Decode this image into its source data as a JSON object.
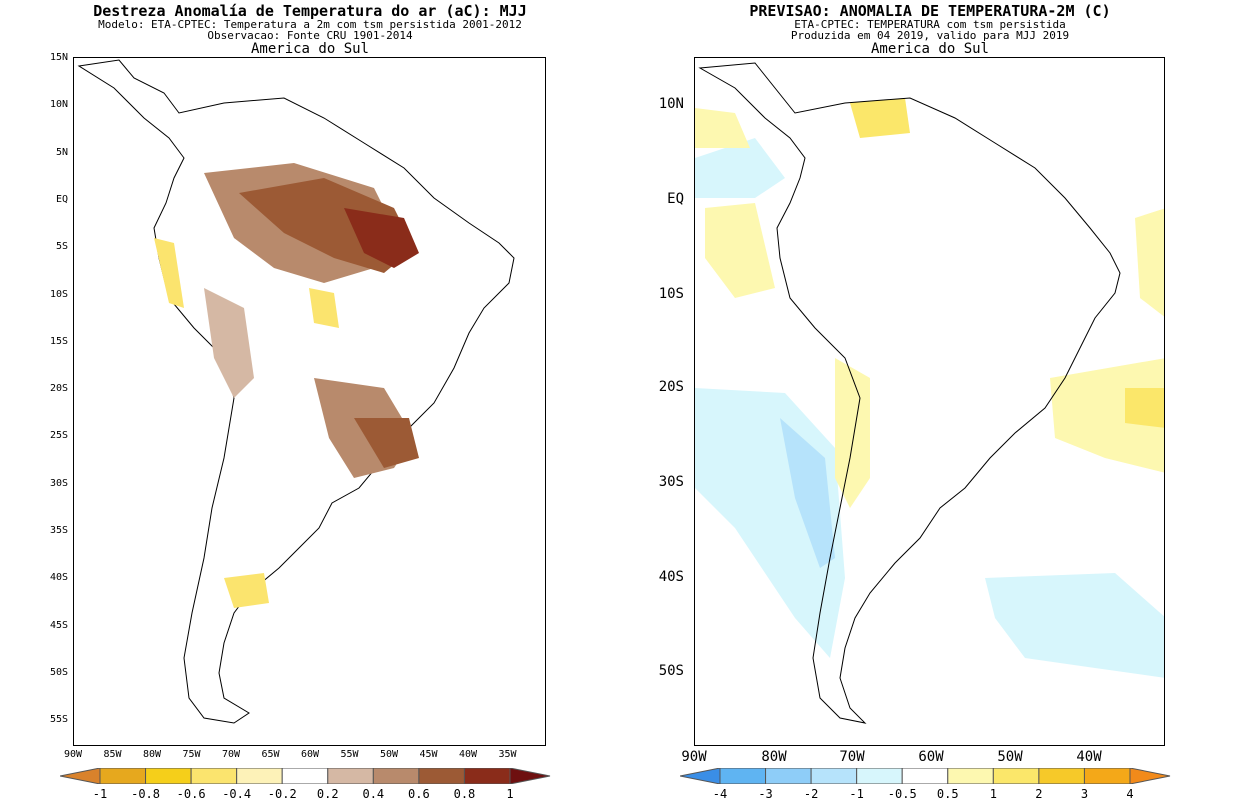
{
  "left": {
    "title": "Destreza Anomalía de Temperatura do ar (aC): MJJ",
    "subtitle1": "Modelo: ETA-CPTEC: Temperatura a 2m com tsm persistida 2001-2012",
    "subtitle2": "Observacao: Fonte CRU 1901-2014",
    "region": "America do Sul",
    "lat_ticks": [
      "15N",
      "10N",
      "5N",
      "EQ",
      "5S",
      "10S",
      "15S",
      "20S",
      "25S",
      "30S",
      "35S",
      "40S",
      "45S",
      "50S",
      "55S"
    ],
    "lon_ticks": [
      "90W",
      "85W",
      "80W",
      "75W",
      "70W",
      "65W",
      "60W",
      "55W",
      "50W",
      "45W",
      "40W",
      "35W"
    ],
    "colorbar": {
      "labels": [
        "-1",
        "-0.8",
        "-0.6",
        "-0.4",
        "-0.2",
        "0.2",
        "0.4",
        "0.6",
        "0.8",
        "1"
      ],
      "colors": [
        "#d9822b",
        "#e6a81e",
        "#f5cf1a",
        "#fbe46e",
        "#fdf2b8",
        "#ffffff",
        "#d5b8a4",
        "#b88a6c",
        "#9c5a35",
        "#8a2c1a",
        "#6e1010"
      ]
    }
  },
  "right": {
    "title": "PREVISAO: ANOMALIA DE TEMPERATURA-2M (C)",
    "subtitle1": "ETA-CPTEC: TEMPERATURA com tsm persistida",
    "subtitle2": "Produzida em 04 2019, valido para MJJ 2019",
    "region": "America do Sul",
    "lat_ticks": [
      "10N",
      "EQ",
      "10S",
      "20S",
      "30S",
      "40S",
      "50S"
    ],
    "lon_ticks": [
      "90W",
      "80W",
      "70W",
      "60W",
      "50W",
      "40W"
    ],
    "colorbar": {
      "labels": [
        "-4",
        "-3",
        "-2",
        "-1",
        "-0.5",
        "0.5",
        "1",
        "2",
        "3",
        "4"
      ],
      "colors": [
        "#3a8ee6",
        "#5fb4f2",
        "#8ecdf8",
        "#b6e3fb",
        "#d7f6fc",
        "#ffffff",
        "#fdf8b0",
        "#fbe76a",
        "#f6c929",
        "#f4a818",
        "#f28a1a"
      ]
    }
  }
}
